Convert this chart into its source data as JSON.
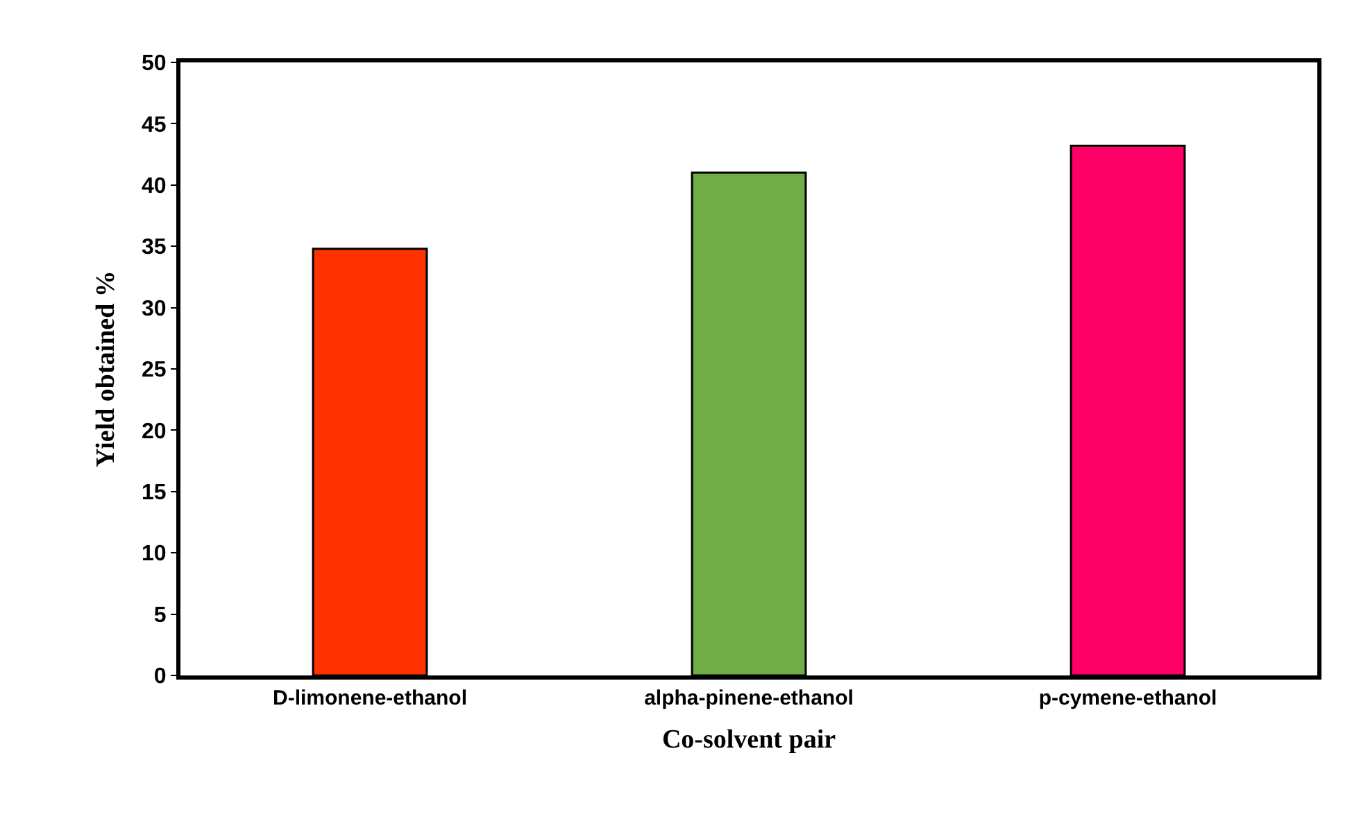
{
  "chart_data": {
    "type": "bar",
    "categories": [
      "D-limonene-ethanol",
      "alpha-pinene-ethanol",
      "p-cymene-ethanol"
    ],
    "values": [
      34.8,
      41.0,
      43.2
    ],
    "colors": [
      "#ff3300",
      "#70ad47",
      "#ff0066"
    ],
    "xlabel": "Co-solvent pair",
    "ylabel": "Yield obtained %",
    "ylim": [
      0,
      50
    ],
    "yticks": [
      0,
      5,
      10,
      15,
      20,
      25,
      30,
      35,
      40,
      45,
      50
    ]
  }
}
